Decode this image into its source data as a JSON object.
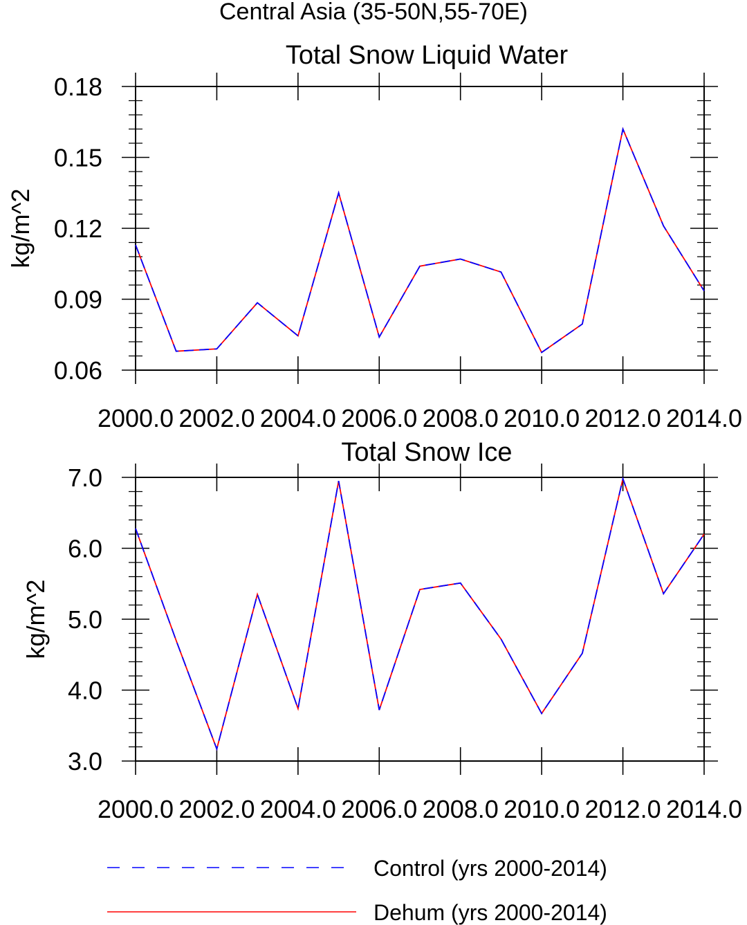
{
  "figure": {
    "title": "Central Asia (35-50N,55-70E)"
  },
  "colors": {
    "control": "#0000ff",
    "dehum": "#ff0000",
    "axis": "#000000"
  },
  "legend": {
    "placement": "bottom",
    "items": [
      {
        "label": "Control (yrs 2000-2014)",
        "style": "dashed",
        "color": "#0000ff"
      },
      {
        "label": "Dehum (yrs 2000-2014)",
        "style": "solid",
        "color": "#ff0000"
      }
    ]
  },
  "chart_data": [
    {
      "type": "line",
      "title": "Total Snow Liquid Water",
      "xlabel": "",
      "ylabel": "kg/m^2",
      "xlim": [
        2000,
        2014
      ],
      "ylim": [
        0.06,
        0.18
      ],
      "xticks": [
        2000,
        2002,
        2004,
        2006,
        2008,
        2010,
        2012,
        2014
      ],
      "xtick_labels": [
        "2000.0",
        "2002.0",
        "2004.0",
        "2006.0",
        "2008.0",
        "2010.0",
        "2012.0",
        "2014.0"
      ],
      "yticks": [
        0.06,
        0.09,
        0.12,
        0.15,
        0.18
      ],
      "ytick_labels": [
        "0.06",
        "0.09",
        "0.12",
        "0.15",
        "0.18"
      ],
      "x": [
        2000,
        2001,
        2002,
        2003,
        2004,
        2005,
        2006,
        2007,
        2008,
        2009,
        2010,
        2011,
        2012,
        2013,
        2014
      ],
      "series": [
        {
          "name": "Control (yrs 2000-2014)",
          "style": "dashed",
          "color": "#0000ff",
          "values": [
            0.113,
            0.068,
            0.069,
            0.0885,
            0.0745,
            0.135,
            0.074,
            0.104,
            0.107,
            0.1015,
            0.0675,
            0.0795,
            0.162,
            0.121,
            0.0935
          ]
        },
        {
          "name": "Dehum (yrs 2000-2014)",
          "style": "solid",
          "color": "#ff0000",
          "values": [
            0.113,
            0.068,
            0.069,
            0.0885,
            0.0745,
            0.135,
            0.074,
            0.104,
            0.107,
            0.1015,
            0.0675,
            0.0795,
            0.162,
            0.121,
            0.0935
          ]
        }
      ]
    },
    {
      "type": "line",
      "title": "Total Snow Ice",
      "xlabel": "",
      "ylabel": "kg/m^2",
      "xlim": [
        2000,
        2014
      ],
      "ylim": [
        3.0,
        7.0
      ],
      "xticks": [
        2000,
        2002,
        2004,
        2006,
        2008,
        2010,
        2012,
        2014
      ],
      "xtick_labels": [
        "2000.0",
        "2002.0",
        "2004.0",
        "2006.0",
        "2008.0",
        "2010.0",
        "2012.0",
        "2014.0"
      ],
      "yticks": [
        3.0,
        4.0,
        5.0,
        6.0,
        7.0
      ],
      "ytick_labels": [
        "3.0",
        "4.0",
        "5.0",
        "6.0",
        "7.0"
      ],
      "x": [
        2000,
        2001,
        2002,
        2003,
        2004,
        2005,
        2006,
        2007,
        2008,
        2009,
        2010,
        2011,
        2012,
        2013,
        2014
      ],
      "series": [
        {
          "name": "Control (yrs 2000-2014)",
          "style": "dashed",
          "color": "#0000ff",
          "values": [
            6.28,
            4.7,
            3.17,
            5.35,
            3.74,
            6.95,
            3.72,
            5.42,
            5.51,
            4.72,
            3.67,
            4.52,
            6.98,
            5.36,
            6.2
          ]
        },
        {
          "name": "Dehum (yrs 2000-2014)",
          "style": "solid",
          "color": "#ff0000",
          "values": [
            6.28,
            4.7,
            3.17,
            5.35,
            3.74,
            6.95,
            3.72,
            5.42,
            5.51,
            4.72,
            3.67,
            4.52,
            6.98,
            5.36,
            6.2
          ]
        }
      ]
    }
  ]
}
